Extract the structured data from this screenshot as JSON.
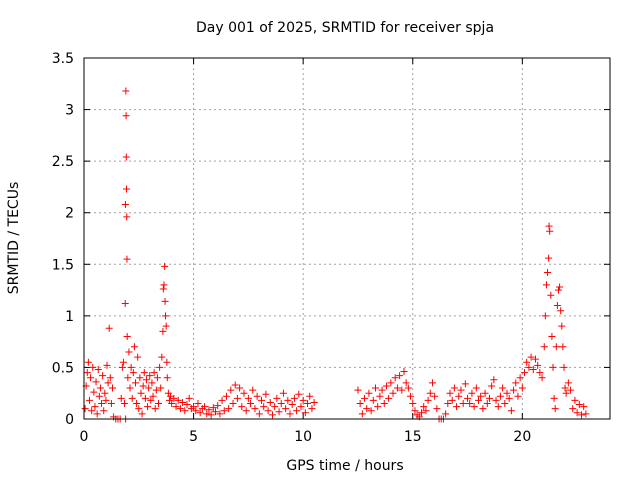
{
  "chart_data": {
    "type": "scatter",
    "title": "Day 001 of 2025, SRMTID for receiver spja",
    "xlabel": "GPS time / hours",
    "ylabel": "SRMTID / TECUs",
    "xlim": [
      0,
      24
    ],
    "ylim": [
      0,
      3.5
    ],
    "xticks": [
      0,
      5,
      10,
      15,
      20
    ],
    "xtick_labels": [
      "0",
      "5",
      "10",
      "15",
      "20"
    ],
    "yticks": [
      0,
      0.5,
      1,
      1.5,
      2,
      2.5,
      3,
      3.5
    ],
    "ytick_labels": [
      "0",
      "0.5",
      "1",
      "1.5",
      "2",
      "2.5",
      "3",
      "3.5"
    ],
    "grid": true,
    "marker": "+",
    "color": "#ff0000",
    "series": [
      {
        "name": "SRMTID",
        "points": [
          [
            0.05,
            0.1
          ],
          [
            0.1,
            0.32
          ],
          [
            0.15,
            0.45
          ],
          [
            0.2,
            0.55
          ],
          [
            0.25,
            0.18
          ],
          [
            0.3,
            0.4
          ],
          [
            0.35,
            0.08
          ],
          [
            0.4,
            0.5
          ],
          [
            0.45,
            0.26
          ],
          [
            0.5,
            0.12
          ],
          [
            0.55,
            0.36
          ],
          [
            0.6,
            0.05
          ],
          [
            0.65,
            0.48
          ],
          [
            0.7,
            0.22
          ],
          [
            0.75,
            0.3
          ],
          [
            0.8,
            0.15
          ],
          [
            0.85,
            0.42
          ],
          [
            0.9,
            0.08
          ],
          [
            0.95,
            0.25
          ],
          [
            1.0,
            0.18
          ],
          [
            1.05,
            0.52
          ],
          [
            1.1,
            0.35
          ],
          [
            1.15,
            0.88
          ],
          [
            1.2,
            0.4
          ],
          [
            1.25,
            0.15
          ],
          [
            1.3,
            0.3
          ],
          [
            1.35,
            0.02
          ],
          [
            1.45,
            0.0
          ],
          [
            1.55,
            0.0
          ],
          [
            1.65,
            0.0
          ],
          [
            1.7,
            0.2
          ],
          [
            1.75,
            0.5
          ],
          [
            1.8,
            0.55
          ],
          [
            1.85,
            0.15
          ],
          [
            1.88,
            1.12
          ],
          [
            1.89,
            2.08
          ],
          [
            1.9,
            0.0
          ],
          [
            1.91,
            3.18
          ],
          [
            1.92,
            2.94
          ],
          [
            1.93,
            2.54
          ],
          [
            1.94,
            2.23
          ],
          [
            1.95,
            1.96
          ],
          [
            1.96,
            1.55
          ],
          [
            1.97,
            0.8
          ],
          [
            2.0,
            0.4
          ],
          [
            2.05,
            0.65
          ],
          [
            2.1,
            0.3
          ],
          [
            2.15,
            0.5
          ],
          [
            2.2,
            0.2
          ],
          [
            2.25,
            0.45
          ],
          [
            2.3,
            0.7
          ],
          [
            2.35,
            0.35
          ],
          [
            2.4,
            0.15
          ],
          [
            2.45,
            0.6
          ],
          [
            2.5,
            0.1
          ],
          [
            2.55,
            0.4
          ],
          [
            2.6,
            0.25
          ],
          [
            2.65,
            0.05
          ],
          [
            2.7,
            0.32
          ],
          [
            2.75,
            0.45
          ],
          [
            2.8,
            0.2
          ],
          [
            2.85,
            0.38
          ],
          [
            2.9,
            0.12
          ],
          [
            2.95,
            0.3
          ],
          [
            3.0,
            0.42
          ],
          [
            3.05,
            0.18
          ],
          [
            3.1,
            0.35
          ],
          [
            3.15,
            0.22
          ],
          [
            3.2,
            0.45
          ],
          [
            3.25,
            0.1
          ],
          [
            3.3,
            0.28
          ],
          [
            3.35,
            0.4
          ],
          [
            3.4,
            0.15
          ],
          [
            3.45,
            0.5
          ],
          [
            3.5,
            0.3
          ],
          [
            3.55,
            0.6
          ],
          [
            3.6,
            0.85
          ],
          [
            3.62,
            1.26
          ],
          [
            3.65,
            1.3
          ],
          [
            3.68,
            1.48
          ],
          [
            3.7,
            1.14
          ],
          [
            3.72,
            1.0
          ],
          [
            3.75,
            0.9
          ],
          [
            3.78,
            0.55
          ],
          [
            3.8,
            0.4
          ],
          [
            3.85,
            0.25
          ],
          [
            3.9,
            0.18
          ],
          [
            3.95,
            0.22
          ],
          [
            4.0,
            0.15
          ],
          [
            4.1,
            0.2
          ],
          [
            4.2,
            0.12
          ],
          [
            4.3,
            0.18
          ],
          [
            4.4,
            0.1
          ],
          [
            4.5,
            0.16
          ],
          [
            4.6,
            0.08
          ],
          [
            4.7,
            0.14
          ],
          [
            4.8,
            0.2
          ],
          [
            4.9,
            0.1
          ],
          [
            5.0,
            0.12
          ],
          [
            5.1,
            0.08
          ],
          [
            5.2,
            0.15
          ],
          [
            5.3,
            0.06
          ],
          [
            5.4,
            0.1
          ],
          [
            5.5,
            0.12
          ],
          [
            5.6,
            0.05
          ],
          [
            5.7,
            0.09
          ],
          [
            5.8,
            0.04
          ],
          [
            5.9,
            0.11
          ],
          [
            6.0,
            0.07
          ],
          [
            6.1,
            0.13
          ],
          [
            6.2,
            0.05
          ],
          [
            6.3,
            0.18
          ],
          [
            6.4,
            0.08
          ],
          [
            6.5,
            0.22
          ],
          [
            6.6,
            0.1
          ],
          [
            6.7,
            0.28
          ],
          [
            6.8,
            0.15
          ],
          [
            6.9,
            0.33
          ],
          [
            7.0,
            0.2
          ],
          [
            7.1,
            0.3
          ],
          [
            7.2,
            0.12
          ],
          [
            7.3,
            0.25
          ],
          [
            7.4,
            0.08
          ],
          [
            7.5,
            0.2
          ],
          [
            7.6,
            0.15
          ],
          [
            7.7,
            0.28
          ],
          [
            7.8,
            0.1
          ],
          [
            7.9,
            0.22
          ],
          [
            8.0,
            0.05
          ],
          [
            8.1,
            0.18
          ],
          [
            8.2,
            0.12
          ],
          [
            8.3,
            0.24
          ],
          [
            8.4,
            0.08
          ],
          [
            8.5,
            0.16
          ],
          [
            8.6,
            0.04
          ],
          [
            8.7,
            0.12
          ],
          [
            8.8,
            0.2
          ],
          [
            8.9,
            0.07
          ],
          [
            9.0,
            0.15
          ],
          [
            9.1,
            0.25
          ],
          [
            9.2,
            0.1
          ],
          [
            9.3,
            0.18
          ],
          [
            9.4,
            0.05
          ],
          [
            9.5,
            0.14
          ],
          [
            9.6,
            0.2
          ],
          [
            9.7,
            0.08
          ],
          [
            9.8,
            0.24
          ],
          [
            9.9,
            0.12
          ],
          [
            10.0,
            0.18
          ],
          [
            10.1,
            0.06
          ],
          [
            10.2,
            0.15
          ],
          [
            10.3,
            0.22
          ],
          [
            10.4,
            0.1
          ],
          [
            10.5,
            0.16
          ],
          [
            12.5,
            0.28
          ],
          [
            12.6,
            0.15
          ],
          [
            12.7,
            0.05
          ],
          [
            12.8,
            0.2
          ],
          [
            12.9,
            0.1
          ],
          [
            13.0,
            0.25
          ],
          [
            13.1,
            0.08
          ],
          [
            13.2,
            0.18
          ],
          [
            13.3,
            0.3
          ],
          [
            13.4,
            0.12
          ],
          [
            13.5,
            0.22
          ],
          [
            13.6,
            0.28
          ],
          [
            13.7,
            0.15
          ],
          [
            13.8,
            0.32
          ],
          [
            13.9,
            0.2
          ],
          [
            14.0,
            0.35
          ],
          [
            14.1,
            0.25
          ],
          [
            14.2,
            0.4
          ],
          [
            14.3,
            0.3
          ],
          [
            14.4,
            0.42
          ],
          [
            14.5,
            0.28
          ],
          [
            14.6,
            0.46
          ],
          [
            14.7,
            0.35
          ],
          [
            14.8,
            0.3
          ],
          [
            14.9,
            0.22
          ],
          [
            15.0,
            0.15
          ],
          [
            15.1,
            0.08
          ],
          [
            15.2,
            0.04
          ],
          [
            15.3,
            0.02
          ],
          [
            15.4,
            0.06
          ],
          [
            15.5,
            0.12
          ],
          [
            15.6,
            0.08
          ],
          [
            15.7,
            0.18
          ],
          [
            15.8,
            0.25
          ],
          [
            15.9,
            0.35
          ],
          [
            16.0,
            0.22
          ],
          [
            16.1,
            0.1
          ],
          [
            16.2,
            0.0
          ],
          [
            16.3,
            0.0
          ],
          [
            16.4,
            0.0
          ],
          [
            16.5,
            0.05
          ],
          [
            16.6,
            0.15
          ],
          [
            16.7,
            0.25
          ],
          [
            16.8,
            0.18
          ],
          [
            16.9,
            0.3
          ],
          [
            17.0,
            0.12
          ],
          [
            17.1,
            0.22
          ],
          [
            17.2,
            0.28
          ],
          [
            17.3,
            0.15
          ],
          [
            17.4,
            0.34
          ],
          [
            17.5,
            0.2
          ],
          [
            17.6,
            0.15
          ],
          [
            17.7,
            0.25
          ],
          [
            17.8,
            0.12
          ],
          [
            17.9,
            0.3
          ],
          [
            18.0,
            0.18
          ],
          [
            18.1,
            0.22
          ],
          [
            18.2,
            0.1
          ],
          [
            18.3,
            0.25
          ],
          [
            18.4,
            0.15
          ],
          [
            18.5,
            0.2
          ],
          [
            18.6,
            0.32
          ],
          [
            18.7,
            0.38
          ],
          [
            18.8,
            0.18
          ],
          [
            18.9,
            0.12
          ],
          [
            19.0,
            0.22
          ],
          [
            19.1,
            0.3
          ],
          [
            19.2,
            0.15
          ],
          [
            19.3,
            0.25
          ],
          [
            19.4,
            0.2
          ],
          [
            19.5,
            0.08
          ],
          [
            19.6,
            0.28
          ],
          [
            19.7,
            0.35
          ],
          [
            19.8,
            0.22
          ],
          [
            19.9,
            0.4
          ],
          [
            20.0,
            0.3
          ],
          [
            20.1,
            0.45
          ],
          [
            20.2,
            0.55
          ],
          [
            20.3,
            0.5
          ],
          [
            20.4,
            0.6
          ],
          [
            20.5,
            0.48
          ],
          [
            20.6,
            0.58
          ],
          [
            20.7,
            0.52
          ],
          [
            20.8,
            0.45
          ],
          [
            20.9,
            0.4
          ],
          [
            21.0,
            0.7
          ],
          [
            21.05,
            1.0
          ],
          [
            21.1,
            1.3
          ],
          [
            21.15,
            1.42
          ],
          [
            21.2,
            1.56
          ],
          [
            21.22,
            1.87
          ],
          [
            21.25,
            1.82
          ],
          [
            21.3,
            1.2
          ],
          [
            21.35,
            0.8
          ],
          [
            21.4,
            0.5
          ],
          [
            21.45,
            0.2
          ],
          [
            21.5,
            0.1
          ],
          [
            21.55,
            0.7
          ],
          [
            21.6,
            1.1
          ],
          [
            21.65,
            1.25
          ],
          [
            21.7,
            1.28
          ],
          [
            21.75,
            1.05
          ],
          [
            21.8,
            0.9
          ],
          [
            21.85,
            0.7
          ],
          [
            21.9,
            0.5
          ],
          [
            21.95,
            0.3
          ],
          [
            22.0,
            0.25
          ],
          [
            22.1,
            0.35
          ],
          [
            22.2,
            0.28
          ],
          [
            22.3,
            0.1
          ],
          [
            22.4,
            0.18
          ],
          [
            22.5,
            0.06
          ],
          [
            22.6,
            0.14
          ],
          [
            22.7,
            0.04
          ],
          [
            22.8,
            0.12
          ],
          [
            22.9,
            0.05
          ]
        ]
      }
    ]
  }
}
